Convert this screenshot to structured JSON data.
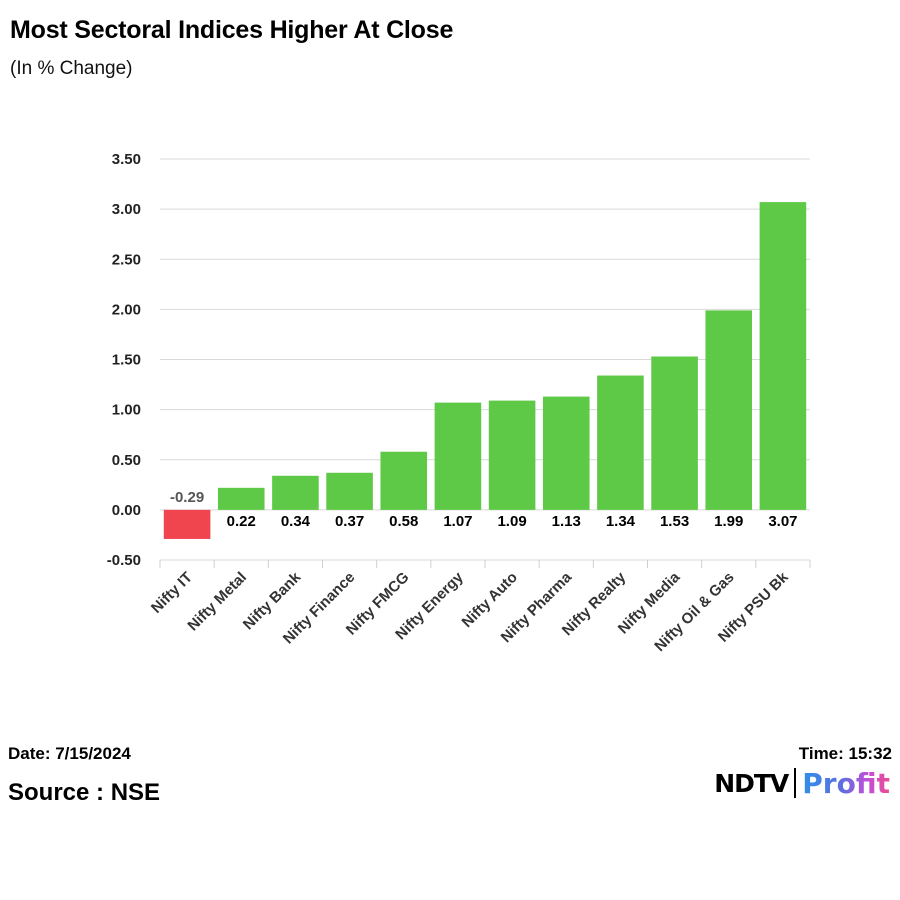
{
  "chart_data": {
    "type": "bar",
    "title": "Most Sectoral Indices Higher At Close",
    "subtitle": "(In % Change)",
    "xlabel": "",
    "ylabel": "",
    "ylim": [
      -0.5,
      3.5
    ],
    "yticks": [
      "3.50",
      "3.00",
      "2.50",
      "2.00",
      "1.50",
      "1.00",
      "0.50",
      "0.00",
      "-0.50"
    ],
    "ytick_values": [
      3.5,
      3.0,
      2.5,
      2.0,
      1.5,
      1.0,
      0.5,
      0.0,
      -0.5
    ],
    "categories": [
      "Nifty IT",
      "Nifty Metal",
      "Nifty Bank",
      "Nifty Finance",
      "Nifty FMCG",
      "Nifty Energy",
      "Nifty Auto",
      "Nifty Pharma",
      "Nifty Realty",
      "Nifty Media",
      "Nifty Oil & Gas",
      "Nifty PSU Bk"
    ],
    "values": [
      -0.29,
      0.22,
      0.34,
      0.37,
      0.58,
      1.07,
      1.09,
      1.13,
      1.34,
      1.53,
      1.99,
      3.07
    ],
    "value_labels": [
      "-0.29",
      "0.22",
      "0.34",
      "0.37",
      "0.58",
      "1.07",
      "1.09",
      "1.13",
      "1.34",
      "1.53",
      "1.99",
      "3.07"
    ],
    "grid": true,
    "colors": {
      "positive": "#5ec946",
      "negative": "#f0454f",
      "grid": "#d9d9d9"
    }
  },
  "footer": {
    "date": "Date: 7/15/2024",
    "time": "Time: 15:32",
    "source": "Source : NSE"
  },
  "logo": {
    "brand": "NDTV",
    "product": "Profit"
  }
}
